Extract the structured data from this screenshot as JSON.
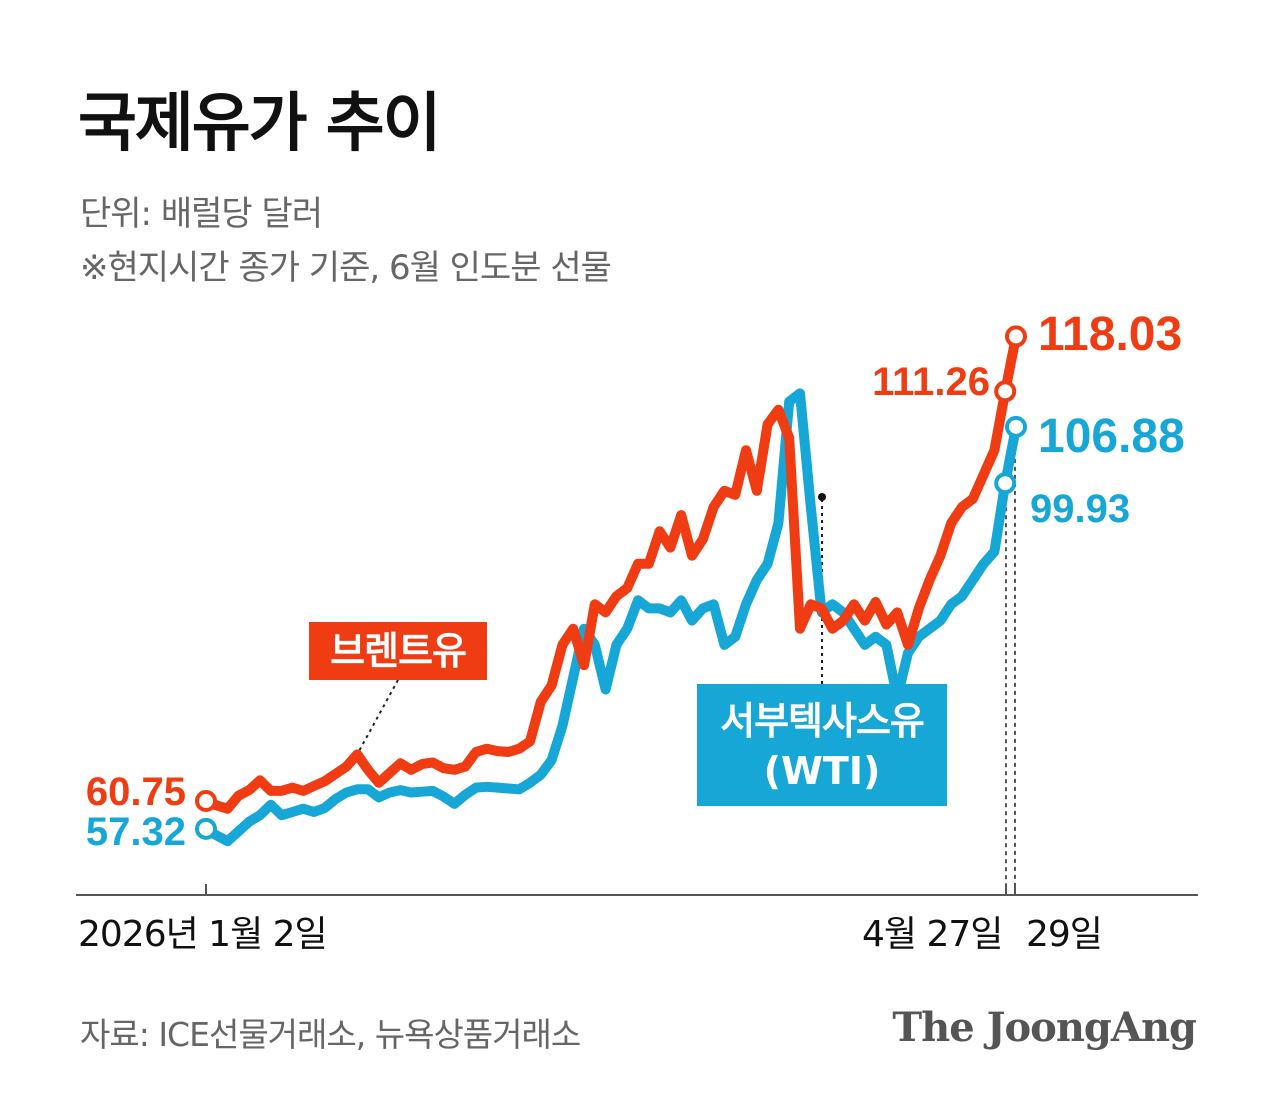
{
  "title": "국제유가 추이",
  "subtitle_unit": "단위: 배럴당 달러",
  "subtitle_note": "※현지시간 종가 기준, 6월 인도분 선물",
  "source": "자료: ICE선물거래소, 뉴욕상품거래소",
  "logo": "The JoongAng",
  "colors": {
    "brent": "#f03c13",
    "wti": "#17a7d6",
    "axis": "#555555"
  },
  "chart_data": {
    "type": "line",
    "y_unit": "배럴당 달러",
    "ylim": [
      52,
      124
    ],
    "x_tick_labels": [
      "2026년 1월 2일",
      "4월 27일",
      "29일"
    ],
    "grid": false,
    "series": [
      {
        "name": "브렌트유",
        "label_box": "브렌트유",
        "start_label": "60.75",
        "end_labels": [
          "111.26",
          "118.03"
        ],
        "values": [
          60.75,
          60.2,
          59.8,
          61.4,
          62.1,
          63.3,
          62.0,
          62.0,
          62.4,
          62.0,
          62.6,
          63.2,
          64.1,
          65.0,
          66.5,
          64.6,
          63.0,
          64.2,
          65.4,
          64.6,
          65.3,
          65.5,
          64.8,
          64.6,
          65.0,
          66.8,
          67.2,
          66.9,
          66.8,
          67.2,
          68.1,
          73.0,
          75.0,
          80.0,
          82.0,
          77.5,
          85.0,
          84.0,
          86.0,
          87.0,
          90.0,
          90.0,
          94.0,
          92.0,
          96.0,
          91.0,
          93.0,
          97.0,
          99.0,
          98.5,
          104.0,
          99.0,
          107.2,
          109.0,
          105.5,
          82.0,
          85.0,
          84.5,
          82.0,
          83.0,
          85.0,
          83.0,
          85.3,
          82.5,
          84.0,
          80.0,
          84.5,
          88.0,
          91.0,
          95.0,
          97.0,
          98.0,
          101.0,
          104.0,
          111.26,
          118.03
        ]
      },
      {
        "name": "서부텍사스유",
        "label_box": [
          "서부텍사스유",
          "(WTI)"
        ],
        "start_label": "57.32",
        "end_labels": [
          "99.93",
          "106.88"
        ],
        "values": [
          57.32,
          56.5,
          55.8,
          57.0,
          58.2,
          59.0,
          60.3,
          59.0,
          59.4,
          59.8,
          59.4,
          59.9,
          61.0,
          61.8,
          62.2,
          62.2,
          61.2,
          61.8,
          62.1,
          61.8,
          61.9,
          62.0,
          61.3,
          60.4,
          61.5,
          62.4,
          62.5,
          62.4,
          62.3,
          62.2,
          63.0,
          64.0,
          65.8,
          70.0,
          76.0,
          82.0,
          80.0,
          74.5,
          80.0,
          82.0,
          85.5,
          84.5,
          84.5,
          84.0,
          85.5,
          83.0,
          84.5,
          85.0,
          80.0,
          81.0,
          85.0,
          88.0,
          90.0,
          95.0,
          110.0,
          111.0,
          97.0,
          84.0,
          85.0,
          84.0,
          82.0,
          80.0,
          81.0,
          80.0,
          73.5,
          79.0,
          81.0,
          82.0,
          83.0,
          85.0,
          86.0,
          88.0,
          90.0,
          91.5,
          99.93,
          106.88
        ]
      }
    ]
  }
}
